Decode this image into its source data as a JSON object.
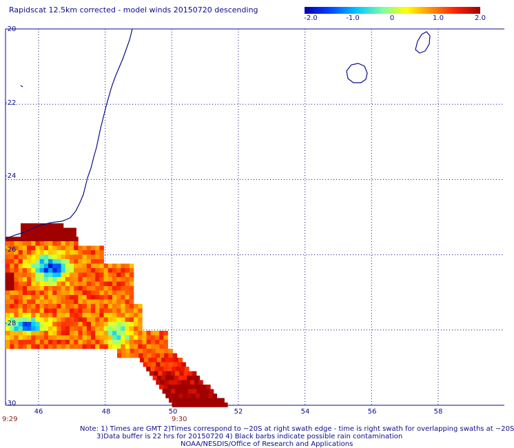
{
  "title": "Rapidscat 12.5km corrected - model winds 20150720 descending",
  "colorbar": {
    "ticks": [
      "-2.0",
      "-1.0",
      "0",
      "1.0",
      "2.0"
    ],
    "range": [
      -2.0,
      2.0
    ],
    "colors": [
      "#0000b0",
      "#0040ff",
      "#00c8ff",
      "#80ffa0",
      "#ffff00",
      "#ff9000",
      "#ff2000",
      "#a00000"
    ]
  },
  "axes": {
    "lat_labels": [
      "-20",
      "-22",
      "-24",
      "-26",
      "-28",
      "-30"
    ],
    "lon_labels": [
      "46",
      "48",
      "50",
      "52",
      "54",
      "56",
      "58"
    ],
    "lat_range": [
      -30,
      -20
    ],
    "lon_range": [
      45,
      59.7
    ]
  },
  "times": [
    "9:29",
    "9:30"
  ],
  "notes": {
    "line1": "Note: 1) Times are GMT 2)Times correspond to ~20S at right swath edge - time is right swath for overlapping swaths at ~20S",
    "line2": "3)Data buffer is 22 hrs for 20150720 4) Black barbs indicate possible rain contamination",
    "line3": "NOAA/NESDIS/Office of Research and Applications"
  }
}
